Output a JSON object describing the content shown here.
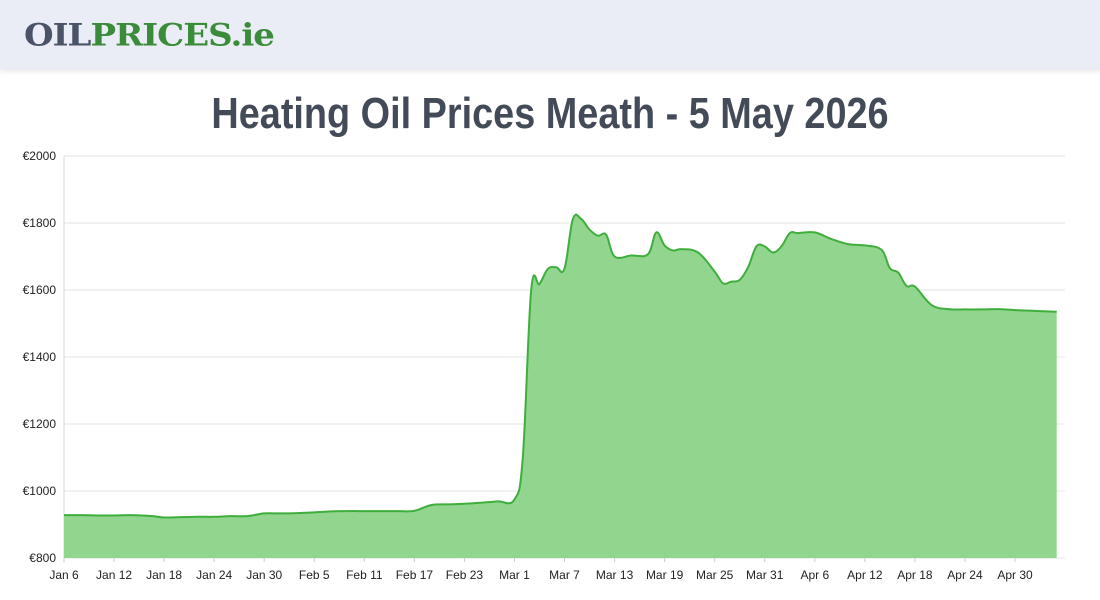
{
  "header": {
    "logo_part1": "OIL",
    "logo_part2": "PRICES",
    "logo_part3": ".ie"
  },
  "page": {
    "title": "Heating Oil Prices Meath - 5 May 2026"
  },
  "colors": {
    "fill": "#91d58f",
    "line": "#3fae3c",
    "grid": "#e3e3e3"
  },
  "chart_data": {
    "type": "area",
    "title": "",
    "xlabel": "",
    "ylabel": "",
    "ylim": [
      800,
      2000
    ],
    "yticks": [
      800,
      1000,
      1200,
      1400,
      1600,
      1800,
      2000
    ],
    "ytick_labels": [
      "€800",
      "€1000",
      "€1200",
      "€1400",
      "€1600",
      "€1800",
      "€2000"
    ],
    "xtick_labels": [
      "Jan 6",
      "Jan 12",
      "Jan 18",
      "Jan 24",
      "Jan 30",
      "Feb 5",
      "Feb 11",
      "Feb 17",
      "Feb 23",
      "Mar 1",
      "Mar 7",
      "Mar 13",
      "Mar 19",
      "Mar 25",
      "Mar 31",
      "Apr 6",
      "Apr 12",
      "Apr 18",
      "Apr 24",
      "Apr 30"
    ],
    "grid": true,
    "legend": "none",
    "series": [
      {
        "points": [
          [
            "Jan 6",
            928
          ],
          [
            "Jan 8",
            928
          ],
          [
            "Jan 10",
            927
          ],
          [
            "Jan 12",
            927
          ],
          [
            "Jan 14",
            928
          ],
          [
            "Jan 16",
            926
          ],
          [
            "Jan 17",
            924
          ],
          [
            "Jan 18",
            921
          ],
          [
            "Jan 20",
            922
          ],
          [
            "Jan 22",
            923
          ],
          [
            "Jan 24",
            923
          ],
          [
            "Jan 26",
            925
          ],
          [
            "Jan 28",
            925
          ],
          [
            "Jan 30",
            933
          ],
          [
            "Feb 1",
            933
          ],
          [
            "Feb 3",
            934
          ],
          [
            "Feb 5",
            936
          ],
          [
            "Feb 7",
            939
          ],
          [
            "Feb 9",
            940
          ],
          [
            "Feb 11",
            940
          ],
          [
            "Feb 13",
            940
          ],
          [
            "Feb 15",
            940
          ],
          [
            "Feb 17",
            941
          ],
          [
            "Feb 19",
            958
          ],
          [
            "Feb 21",
            960
          ],
          [
            "Feb 23",
            962
          ],
          [
            "Feb 25",
            965
          ],
          [
            "Feb 27",
            969
          ],
          [
            "Mar 1",
            975
          ],
          [
            "Mar 2",
            1100
          ],
          [
            "Mar 3",
            1600
          ],
          [
            "Mar 4",
            1618
          ],
          [
            "Mar 5",
            1663
          ],
          [
            "Mar 6",
            1668
          ],
          [
            "Mar 7",
            1664
          ],
          [
            "Mar 8",
            1812
          ],
          [
            "Mar 9",
            1812
          ],
          [
            "Mar 10",
            1780
          ],
          [
            "Mar 11",
            1762
          ],
          [
            "Mar 12",
            1765
          ],
          [
            "Mar 13",
            1700
          ],
          [
            "Mar 15",
            1703
          ],
          [
            "Mar 17",
            1707
          ],
          [
            "Mar 18",
            1772
          ],
          [
            "Mar 19",
            1733
          ],
          [
            "Mar 20",
            1718
          ],
          [
            "Mar 21",
            1722
          ],
          [
            "Mar 23",
            1712
          ],
          [
            "Mar 25",
            1655
          ],
          [
            "Mar 26",
            1620
          ],
          [
            "Mar 27",
            1625
          ],
          [
            "Mar 28",
            1630
          ],
          [
            "Mar 29",
            1668
          ],
          [
            "Mar 30",
            1730
          ],
          [
            "Mar 31",
            1730
          ],
          [
            "Apr 1",
            1712
          ],
          [
            "Apr 2",
            1730
          ],
          [
            "Apr 3",
            1770
          ],
          [
            "Apr 4",
            1770
          ],
          [
            "Apr 6",
            1772
          ],
          [
            "Apr 8",
            1752
          ],
          [
            "Apr 10",
            1737
          ],
          [
            "Apr 12",
            1733
          ],
          [
            "Apr 14",
            1720
          ],
          [
            "Apr 15",
            1665
          ],
          [
            "Apr 16",
            1652
          ],
          [
            "Apr 17",
            1612
          ],
          [
            "Apr 18",
            1610
          ],
          [
            "Apr 20",
            1555
          ],
          [
            "Apr 22",
            1543
          ],
          [
            "Apr 24",
            1542
          ],
          [
            "Apr 26",
            1542
          ],
          [
            "Apr 28",
            1543
          ],
          [
            "Apr 30",
            1540
          ],
          [
            "May 2",
            1538
          ],
          [
            "May 5",
            1535
          ]
        ]
      }
    ]
  }
}
